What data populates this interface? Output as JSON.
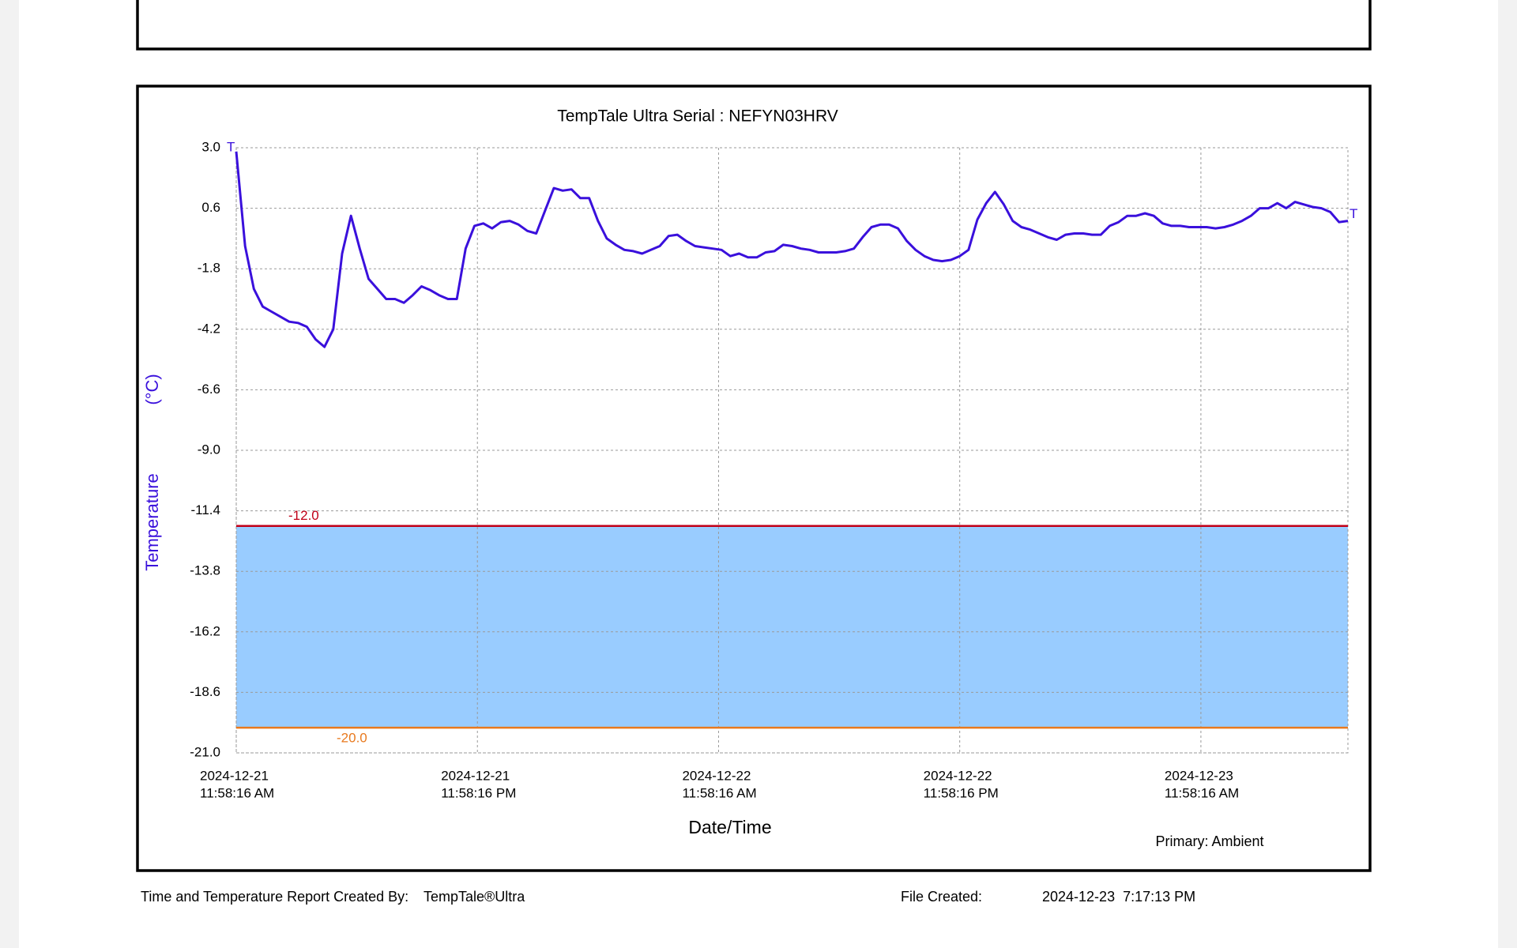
{
  "chart_data": {
    "type": "line",
    "title": "TempTale Ultra  Serial : NEFYN03HRV",
    "y_label": "Temperature",
    "y_unit_label": "(°C)",
    "x_label": "Date/Time",
    "sensor_label": "Primary: Ambient",
    "start_marker": "T",
    "end_marker": "T",
    "grid": true,
    "xlim": [
      "2024-12-21T11:58:16",
      "2024-12-23T19:17:13"
    ],
    "xticks": [
      {
        "value": "2024-12-21T11:58:16",
        "label": [
          "2024-12-21",
          "11:58:16 AM"
        ]
      },
      {
        "value": "2024-12-21T23:58:16",
        "label": [
          "2024-12-21",
          "11:58:16 PM"
        ]
      },
      {
        "value": "2024-12-22T11:58:16",
        "label": [
          "2024-12-22",
          "11:58:16 AM"
        ]
      },
      {
        "value": "2024-12-22T23:58:16",
        "label": [
          "2024-12-22",
          "11:58:16 PM"
        ]
      },
      {
        "value": "2024-12-23T11:58:16",
        "label": [
          "2024-12-23",
          "11:58:16 AM"
        ]
      }
    ],
    "ylim": [
      -21,
      3
    ],
    "yticks": [
      {
        "value": 3,
        "label": "3.0"
      },
      {
        "value": 0.6,
        "label": "0.6"
      },
      {
        "value": -1.8,
        "label": "-1.8"
      },
      {
        "value": -4.2,
        "label": "-4.2"
      },
      {
        "value": -6.6,
        "label": "-6.6"
      },
      {
        "value": -9,
        "label": "-9.0"
      },
      {
        "value": -11.4,
        "label": "-11.4"
      },
      {
        "value": -13.8,
        "label": "-13.8"
      },
      {
        "value": -16.2,
        "label": "-16.2"
      },
      {
        "value": -18.6,
        "label": "-18.6"
      },
      {
        "value": -21,
        "label": "-21.0"
      }
    ],
    "limits": [
      {
        "value": -12,
        "label": "-12.0",
        "color": "#c00018"
      },
      {
        "value": -20,
        "label": "-20.0",
        "color": "#e8791e"
      }
    ],
    "band_color": "#99ccff",
    "series": [
      {
        "name": "Ambient",
        "color": "#3a10dc",
        "values": [
          2.85,
          -0.9,
          -2.6,
          -3.3,
          -3.5,
          -3.7,
          -3.9,
          -3.95,
          -4.1,
          -4.6,
          -4.9,
          -4.2,
          -1.2,
          0.3,
          -1.0,
          -2.2,
          -2.6,
          -3.0,
          -3.0,
          -3.15,
          -2.85,
          -2.5,
          -2.65,
          -2.85,
          -3.0,
          -3.0,
          -1.0,
          -0.1,
          0.0,
          -0.2,
          0.05,
          0.1,
          -0.05,
          -0.3,
          -0.4,
          0.5,
          1.4,
          1.3,
          1.35,
          1.0,
          1.0,
          0.1,
          -0.6,
          -0.85,
          -1.05,
          -1.1,
          -1.2,
          -1.05,
          -0.9,
          -0.5,
          -0.45,
          -0.7,
          -0.9,
          -0.95,
          -1.0,
          -1.05,
          -1.3,
          -1.2,
          -1.35,
          -1.35,
          -1.15,
          -1.1,
          -0.85,
          -0.9,
          -1.0,
          -1.05,
          -1.15,
          -1.15,
          -1.15,
          -1.1,
          -1.0,
          -0.55,
          -0.15,
          -0.05,
          -0.05,
          -0.2,
          -0.7,
          -1.05,
          -1.3,
          -1.45,
          -1.5,
          -1.45,
          -1.3,
          -1.05,
          0.15,
          0.8,
          1.25,
          0.75,
          0.1,
          -0.15,
          -0.25,
          -0.4,
          -0.55,
          -0.65,
          -0.45,
          -0.4,
          -0.4,
          -0.45,
          -0.45,
          -0.1,
          0.05,
          0.3,
          0.3,
          0.4,
          0.3,
          0.0,
          -0.1,
          -0.1,
          -0.15,
          -0.15,
          -0.15,
          -0.2,
          -0.15,
          -0.05,
          0.1,
          0.3,
          0.6,
          0.6,
          0.8,
          0.6,
          0.85,
          0.75,
          0.65,
          0.6,
          0.45,
          0.05,
          0.1
        ]
      }
    ]
  },
  "footer": {
    "created_by_label": "Time and Temperature Report Created By:",
    "product": "TempTale®Ultra",
    "file_created_label": "File Created:",
    "file_created": "2024-12-23  7:17:13 PM"
  }
}
